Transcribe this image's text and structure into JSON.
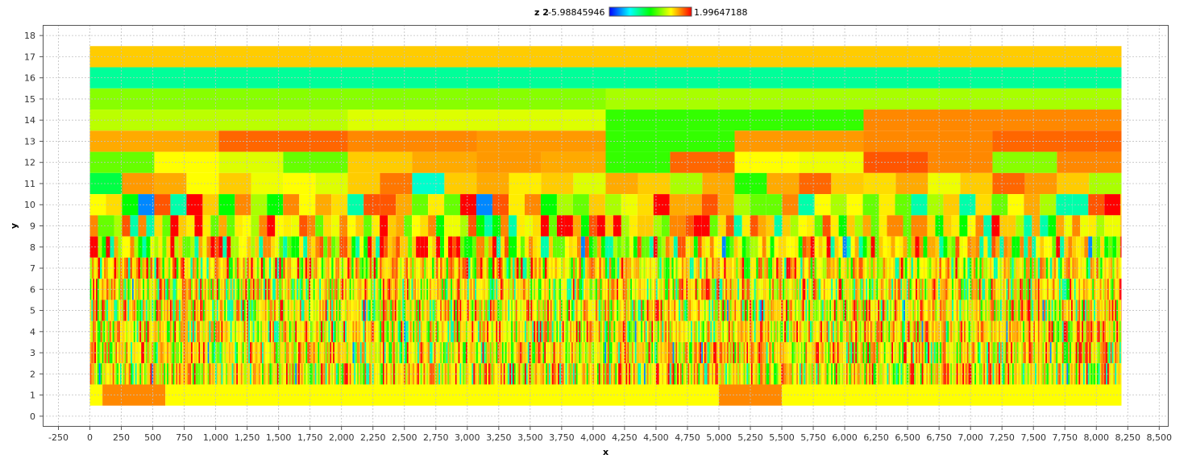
{
  "chart_data": {
    "type": "heatmap",
    "xlabel": "x",
    "ylabel": "y",
    "legend": {
      "series": "z 2",
      "min_label": "-5.98845946",
      "max_label": "1.99647188",
      "placement": "top-center"
    },
    "colorscale": [
      "#0000ff",
      "#00ffff",
      "#00ff00",
      "#ffff00",
      "#ff0000"
    ],
    "xlim": [
      -375,
      8575
    ],
    "ylim": [
      -0.5,
      18.5
    ],
    "x_ticks": [
      "-250",
      "0",
      "250",
      "500",
      "750",
      "1,000",
      "1,250",
      "1,500",
      "1,750",
      "2,000",
      "2,250",
      "2,500",
      "2,750",
      "3,000",
      "3,250",
      "3,500",
      "3,750",
      "4,000",
      "4,250",
      "4,500",
      "4,750",
      "5,000",
      "5,250",
      "5,500",
      "5,750",
      "6,000",
      "6,250",
      "6,500",
      "6,750",
      "7,000",
      "7,250",
      "7,500",
      "7,750",
      "8,000",
      "8,250",
      "8,500"
    ],
    "y_ticks": [
      "0",
      "1",
      "2",
      "3",
      "4",
      "5",
      "6",
      "7",
      "8",
      "9",
      "10",
      "11",
      "12",
      "13",
      "14",
      "15",
      "16",
      "17",
      "18"
    ],
    "grid": true,
    "x_extent": [
      0,
      8200
    ],
    "rows": [
      {
        "y": 17,
        "segments": [
          [
            0,
            8200,
            "#ffcc00"
          ]
        ]
      },
      {
        "y": 16,
        "segments": [
          [
            0,
            8200,
            "#00ff99"
          ]
        ]
      },
      {
        "y": 15,
        "segments": [
          [
            0,
            4100,
            "#88ff00"
          ],
          [
            4100,
            8200,
            "#a8ff00"
          ]
        ]
      },
      {
        "y": 14,
        "segments": [
          [
            0,
            2050,
            "#bbff00"
          ],
          [
            2050,
            4100,
            "#ddff00"
          ],
          [
            4100,
            6150,
            "#33ff00"
          ],
          [
            6150,
            8200,
            "#ff8800"
          ]
        ]
      },
      {
        "y": 13,
        "segments": [
          [
            0,
            1025,
            "#ffaa00"
          ],
          [
            1025,
            2050,
            "#ff6600"
          ],
          [
            2050,
            3075,
            "#ff8800"
          ],
          [
            3075,
            4100,
            "#ff9900"
          ],
          [
            4100,
            5125,
            "#33ff00"
          ],
          [
            5125,
            6150,
            "#ff9900"
          ],
          [
            6150,
            7175,
            "#ff8800"
          ],
          [
            7175,
            8200,
            "#ff6600"
          ]
        ]
      },
      {
        "y": 12,
        "segments": [
          [
            0,
            512,
            "#66ff00"
          ],
          [
            512,
            1025,
            "#ffff00"
          ],
          [
            1025,
            1537,
            "#ddff00"
          ],
          [
            1537,
            2050,
            "#66ff00"
          ],
          [
            2050,
            2562,
            "#ffcc00"
          ],
          [
            2562,
            3075,
            "#ffaa00"
          ],
          [
            3075,
            3587,
            "#ff9900"
          ],
          [
            3587,
            4100,
            "#ffaa00"
          ],
          [
            4100,
            4612,
            "#33ff00"
          ],
          [
            4612,
            5125,
            "#ff6600"
          ],
          [
            5125,
            5637,
            "#ffff00"
          ],
          [
            5637,
            6150,
            "#eeff00"
          ],
          [
            6150,
            6662,
            "#ff5500"
          ],
          [
            6662,
            7175,
            "#ff8800"
          ],
          [
            7175,
            7687,
            "#88ff00"
          ],
          [
            7687,
            8200,
            "#ff8800"
          ]
        ]
      },
      {
        "y": 11,
        "segments": [
          [
            0,
            256,
            "#00ff44"
          ],
          [
            256,
            512,
            "#ff9900"
          ],
          [
            512,
            768,
            "#ffaa00"
          ],
          [
            768,
            1025,
            "#ffff00"
          ],
          [
            1025,
            1281,
            "#ffcc00"
          ],
          [
            1281,
            1537,
            "#eeff00"
          ],
          [
            1537,
            1793,
            "#ffff00"
          ],
          [
            1793,
            2050,
            "#ddff00"
          ],
          [
            2050,
            2306,
            "#ffcc00"
          ],
          [
            2306,
            2562,
            "#ff7700"
          ],
          [
            2562,
            2818,
            "#00ffcc"
          ],
          [
            2818,
            3075,
            "#ffcc00"
          ],
          [
            3075,
            3331,
            "#ffaa00"
          ],
          [
            3331,
            3587,
            "#ffee00"
          ],
          [
            3587,
            3843,
            "#ffcc00"
          ],
          [
            3843,
            4100,
            "#ddff00"
          ],
          [
            4100,
            4356,
            "#ffaa00"
          ],
          [
            4356,
            4612,
            "#ffcc00"
          ],
          [
            4612,
            4868,
            "#aaff00"
          ],
          [
            4868,
            5125,
            "#ffaa00"
          ],
          [
            5125,
            5381,
            "#22ff00"
          ],
          [
            5381,
            5637,
            "#ffaa00"
          ],
          [
            5637,
            5893,
            "#ff6600"
          ],
          [
            5893,
            6150,
            "#ffcc00"
          ],
          [
            6150,
            6406,
            "#ffdd00"
          ],
          [
            6406,
            6662,
            "#ffaa00"
          ],
          [
            6662,
            6918,
            "#eeff00"
          ],
          [
            6918,
            7175,
            "#ffcc00"
          ],
          [
            7175,
            7431,
            "#ff6600"
          ],
          [
            7431,
            7687,
            "#ff9900"
          ],
          [
            7687,
            7943,
            "#ffcc00"
          ],
          [
            7943,
            8200,
            "#aaff00"
          ]
        ]
      }
    ],
    "noise_rows": [
      {
        "y": 10,
        "segment_width": 128,
        "seed": 10
      },
      {
        "y": 9,
        "segment_width": 64,
        "seed": 9
      },
      {
        "y": 8,
        "segment_width": 32,
        "seed": 8
      },
      {
        "y": 7,
        "segment_width": 16,
        "seed": 7
      },
      {
        "y": 6,
        "segment_width": 12,
        "seed": 6
      },
      {
        "y": 5,
        "segment_width": 12,
        "seed": 5
      },
      {
        "y": 4,
        "segment_width": 12,
        "seed": 4
      },
      {
        "y": 3,
        "segment_width": 12,
        "seed": 3
      },
      {
        "y": 2,
        "segment_width": 12,
        "seed": 2
      }
    ],
    "noise_palette": [
      "#ffff00",
      "#ffcc00",
      "#ffaa00",
      "#ff8800",
      "#ff5500",
      "#ff0000",
      "#eeff00",
      "#aaff00",
      "#66ff00",
      "#00ff00",
      "#00ffaa",
      "#ffdd00",
      "#ffee00"
    ],
    "bottom_row": {
      "y": 1,
      "segments": [
        [
          0,
          100,
          "#ffff00"
        ],
        [
          100,
          600,
          "#ff8800"
        ],
        [
          600,
          5000,
          "#ffff00"
        ],
        [
          5000,
          5500,
          "#ff8800"
        ],
        [
          5500,
          8200,
          "#ffff00"
        ]
      ]
    }
  }
}
